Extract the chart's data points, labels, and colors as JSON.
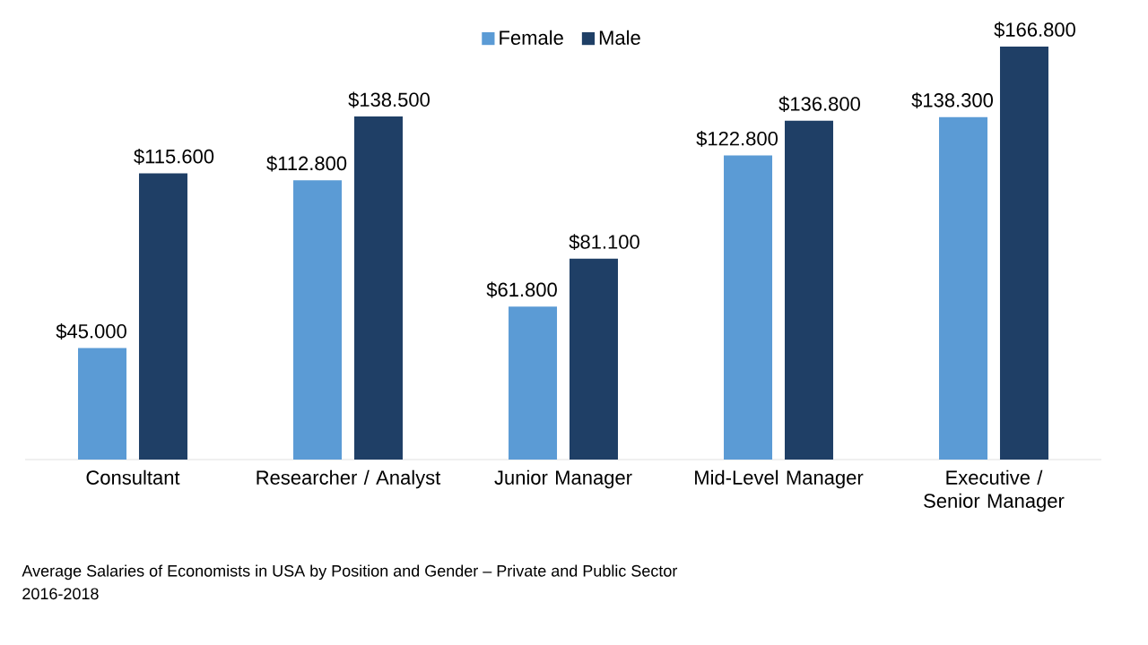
{
  "chart_data": {
    "type": "bar",
    "categories": [
      "Consultant",
      "Researcher / Analyst",
      "Junior Manager",
      "Mid-Level Manager",
      "Executive / Senior Manager"
    ],
    "series": [
      {
        "name": "Female",
        "color": "#5b9bd5",
        "values": [
          45000,
          112800,
          61800,
          122800,
          138300
        ],
        "value_labels": [
          "$45.000",
          "$112.800",
          "$61.800",
          "$122.800",
          "$138.300"
        ]
      },
      {
        "name": "Male",
        "color": "#1f3f66",
        "values": [
          115600,
          138500,
          81100,
          136800,
          166800
        ],
        "value_labels": [
          "$115.600",
          "$138.500",
          "$81.100",
          "$136.800",
          "$166.800"
        ]
      }
    ],
    "legend": "top",
    "annotations": [
      "Average Salaries of Economists in USA by Position and Gender – Private and Public Sector",
      "2016-2018"
    ]
  }
}
